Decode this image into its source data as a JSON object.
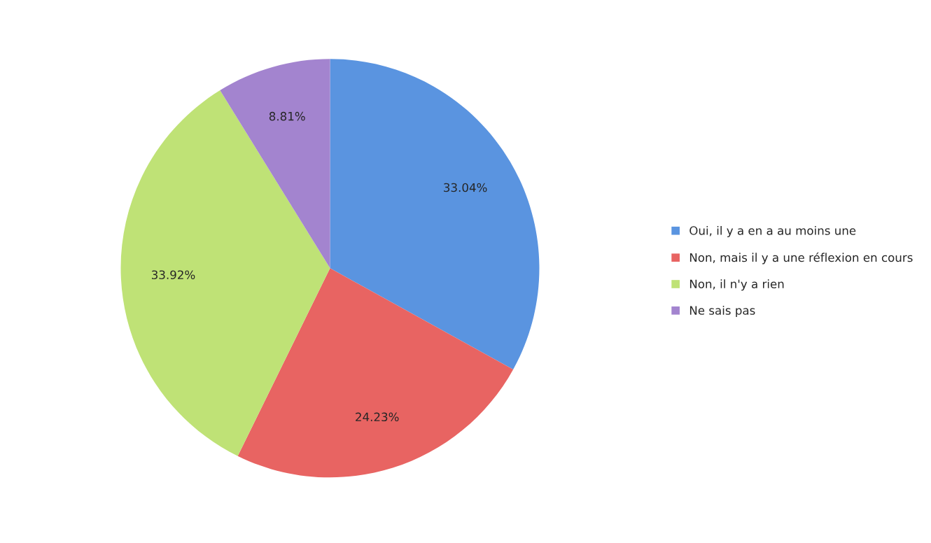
{
  "chart_data": {
    "type": "pie",
    "categories": [
      "Oui, il y a en a au moins une",
      "Non, mais il y a une réflexion en cours",
      "Non, il n'y a rien",
      "Ne sais pas"
    ],
    "values": [
      33.04,
      24.23,
      33.92,
      8.81
    ],
    "colors": [
      "#5a94e0",
      "#e86462",
      "#bfe276",
      "#a384cf"
    ],
    "value_labels": [
      "33.04%",
      "24.23%",
      "33.92%",
      "8.81%"
    ],
    "legend": "right"
  }
}
